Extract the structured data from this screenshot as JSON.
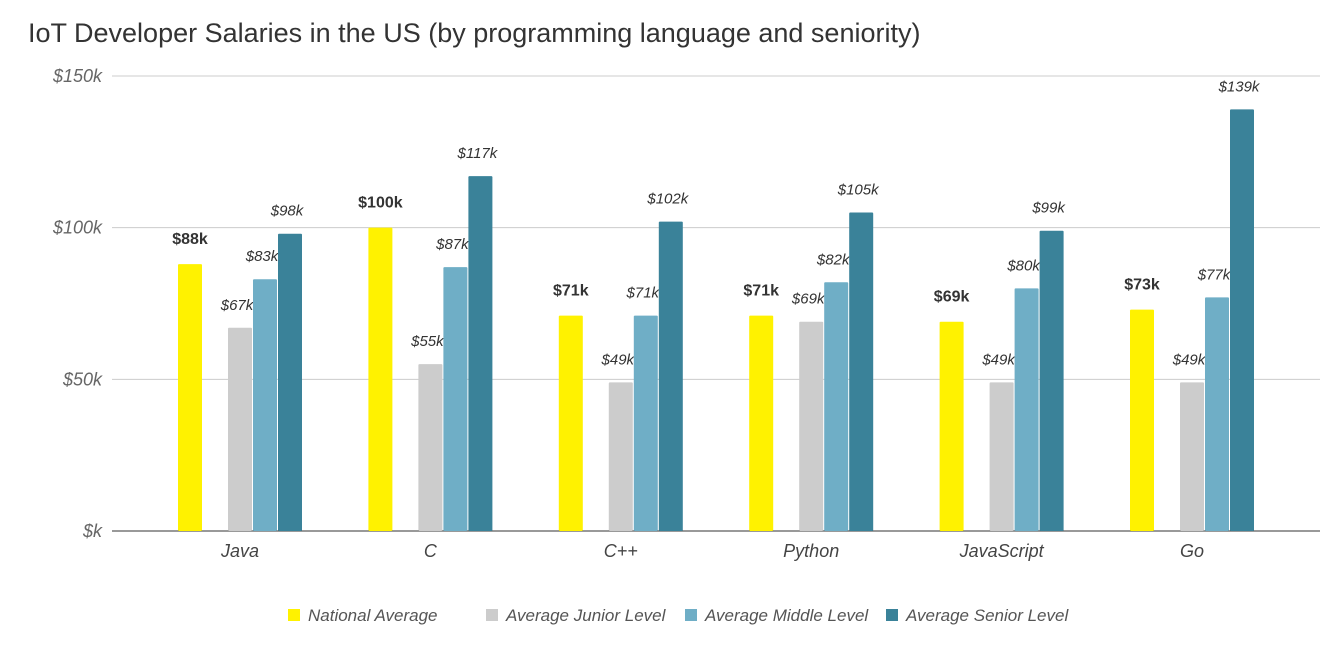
{
  "chart_data": {
    "type": "bar",
    "title": "IoT Developer Salaries in the US (by programming language and seniority)",
    "categories": [
      "Java",
      "C",
      "C++",
      "Python",
      "JavaScript",
      "Go"
    ],
    "series": [
      {
        "name": "National Average",
        "color": "#FFF200",
        "values": [
          88,
          100,
          71,
          71,
          69,
          73
        ],
        "labels": [
          "$88k",
          "$100k",
          "$71k",
          "$71k",
          "$69k",
          "$73k"
        ],
        "label_style": "bold"
      },
      {
        "name": "Average Junior Level",
        "color": "#CCCCCC",
        "values": [
          67,
          55,
          49,
          69,
          49,
          49
        ],
        "labels": [
          "$67k",
          "$55k",
          "$49k",
          "$69k",
          "$49k",
          "$49k"
        ],
        "label_style": "italic"
      },
      {
        "name": "Average Middle Level",
        "color": "#6FAEC6",
        "values": [
          83,
          87,
          71,
          82,
          80,
          77
        ],
        "labels": [
          "$83k",
          "$87k",
          "$71k",
          "$82k",
          "$80k",
          "$77k"
        ],
        "label_style": "italic"
      },
      {
        "name": "Average Senior Level",
        "color": "#3A8299",
        "values": [
          98,
          117,
          102,
          105,
          99,
          139
        ],
        "labels": [
          "$98k",
          "$117k",
          "$102k",
          "$105k",
          "$99k",
          "$139k"
        ],
        "label_style": "italic"
      }
    ],
    "yticks": [
      0,
      50,
      100,
      150
    ],
    "ytick_labels": [
      "$k",
      "$50k",
      "$100k",
      "$150k"
    ],
    "ylim": [
      0,
      150
    ],
    "yunit": "thousand USD",
    "grid": true,
    "legend": "bottom",
    "xlabel": "",
    "ylabel": ""
  }
}
